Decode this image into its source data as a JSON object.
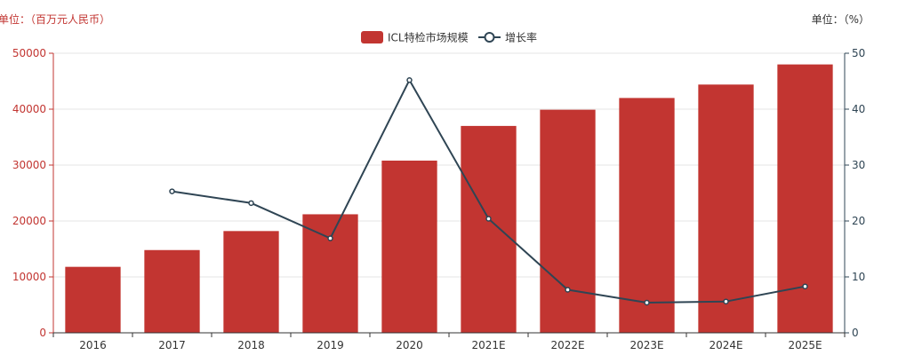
{
  "chart_data": {
    "type": "bar",
    "categories": [
      "2016",
      "2017",
      "2018",
      "2019",
      "2020",
      "2021E",
      "2022E",
      "2023E",
      "2024E",
      "2025E"
    ],
    "series": [
      {
        "name": "ICL特检市场规模",
        "type": "bar",
        "axis": "left",
        "color": "#c23531",
        "values": [
          11800,
          14800,
          18200,
          21200,
          30800,
          37000,
          39900,
          42000,
          44400,
          48000
        ]
      },
      {
        "name": "增长率",
        "type": "line",
        "axis": "right",
        "color": "#2f4554",
        "values": [
          null,
          25.3,
          23.2,
          16.9,
          45.2,
          20.4,
          7.7,
          5.4,
          5.6,
          8.3
        ]
      }
    ],
    "left_unit": "单位：（百万元人民币）",
    "right_unit": "单位：（%）",
    "ylim_left": [
      0,
      50000
    ],
    "ylim_right": [
      0,
      50
    ],
    "yticks_left": [
      "0",
      "10000",
      "20000",
      "30000",
      "40000",
      "50000"
    ],
    "yticks_right": [
      "0",
      "10",
      "20",
      "30",
      "40",
      "50"
    ],
    "grid": true,
    "legend_position": "top-center",
    "left_axis_color": "#c23531",
    "right_axis_color": "#2f4554"
  }
}
